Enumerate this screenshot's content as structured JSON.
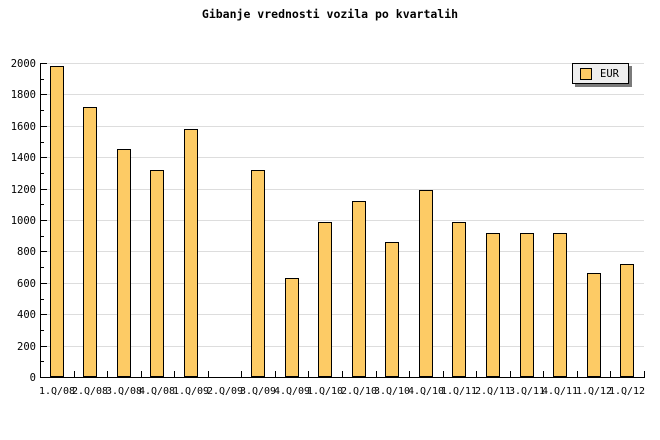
{
  "title": "Gibanje vrednosti vozila po kvartalih",
  "legend": {
    "label": "EUR"
  },
  "colors": {
    "background": "#ffffff",
    "bar_fill": "#fdcb65",
    "bar_border": "#000000",
    "gridline": "#dddddd",
    "axis": "#000000",
    "text": "#000000",
    "legend_bg": "#eeeeee",
    "legend_border": "#000000",
    "legend_shadow": "#7a7a7a"
  },
  "chart_data": {
    "type": "bar",
    "title": "Gibanje vrednosti vozila po kvartalih",
    "series_name": "EUR",
    "categories": [
      "1.Q/08",
      "2.Q/08",
      "3.Q/08",
      "4.Q/08",
      "1.Q/09",
      "2.Q/09",
      "3.Q/09",
      "4.Q/09",
      "1.Q/10",
      "2.Q/10",
      "3.Q/10",
      "4.Q/10",
      "1.Q/11",
      "2.Q/11",
      "3.Q/11",
      "4.Q/11",
      "1.Q/12",
      "1.Q/12"
    ],
    "values": [
      1980,
      1720,
      1450,
      1320,
      1580,
      0,
      1320,
      630,
      990,
      1120,
      860,
      1190,
      990,
      920,
      920,
      920,
      660,
      720
    ],
    "xlabel": "",
    "ylabel": "",
    "ylim": [
      0,
      2000
    ],
    "ytick_step": 200,
    "yminor_tick_step": 100,
    "ytick_labels": [
      "0",
      "200",
      "400",
      "600",
      "800",
      "1000",
      "1200",
      "1400",
      "1600",
      "1800",
      "2000"
    ],
    "grid": true,
    "legend_position": "top-right",
    "note": "category 2.Q/09 has no bar (value 0); last two categories are both labeled 1.Q/12"
  }
}
